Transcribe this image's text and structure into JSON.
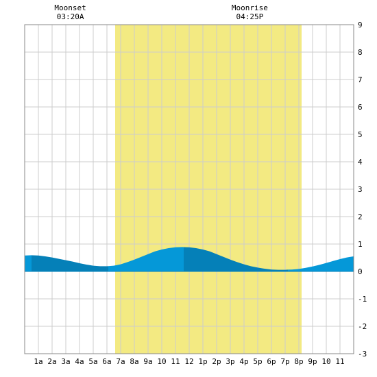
{
  "chart_data": {
    "type": "area",
    "x_unit": "hour of day",
    "xlim": [
      0,
      24
    ],
    "ylim": [
      -3,
      9
    ],
    "y_ticks": [
      -3,
      -2,
      -1,
      0,
      1,
      2,
      3,
      4,
      5,
      6,
      7,
      8,
      9
    ],
    "x_tick_labels": [
      "1a",
      "2a",
      "3a",
      "4a",
      "5a",
      "6a",
      "7a",
      "8a",
      "9a",
      "10",
      "11",
      "12",
      "1p",
      "2p",
      "3p",
      "4p",
      "5p",
      "6p",
      "7p",
      "8p",
      "9p",
      "10",
      "11"
    ],
    "daylight": {
      "start": 6.6,
      "end": 20.2
    },
    "moon_events": [
      {
        "label": "Moonset",
        "time": "03:20A",
        "hour": 3.33
      },
      {
        "label": "Moonrise",
        "time": "04:25P",
        "hour": 16.42
      }
    ],
    "tide": {
      "x": [
        0,
        0.5,
        1,
        1.5,
        2,
        2.5,
        3,
        3.5,
        4,
        4.5,
        5,
        5.5,
        6,
        6.5,
        7,
        7.5,
        8,
        8.5,
        9,
        9.5,
        10,
        10.5,
        11,
        11.5,
        12,
        12.5,
        13,
        13.5,
        14,
        14.5,
        15,
        15.5,
        16,
        16.5,
        17,
        17.5,
        18,
        18.5,
        19,
        19.5,
        20,
        20.5,
        21,
        21.5,
        22,
        22.5,
        23,
        23.5,
        24
      ],
      "y": [
        0.58,
        0.59,
        0.58,
        0.55,
        0.51,
        0.46,
        0.41,
        0.36,
        0.3,
        0.25,
        0.21,
        0.19,
        0.19,
        0.21,
        0.26,
        0.34,
        0.43,
        0.53,
        0.63,
        0.73,
        0.8,
        0.85,
        0.88,
        0.89,
        0.88,
        0.85,
        0.8,
        0.73,
        0.63,
        0.53,
        0.43,
        0.34,
        0.26,
        0.19,
        0.14,
        0.1,
        0.07,
        0.06,
        0.06,
        0.07,
        0.09,
        0.13,
        0.18,
        0.24,
        0.31,
        0.38,
        0.45,
        0.51,
        0.55
      ]
    },
    "turning_points": [
      0.5,
      6.1,
      11.6,
      19.2
    ],
    "colors": {
      "daylight": "#f3ea82",
      "grid": "#cccccc",
      "tide_light": "#0598d8",
      "tide_dark": "#0580b8",
      "frame": "#888888"
    }
  }
}
